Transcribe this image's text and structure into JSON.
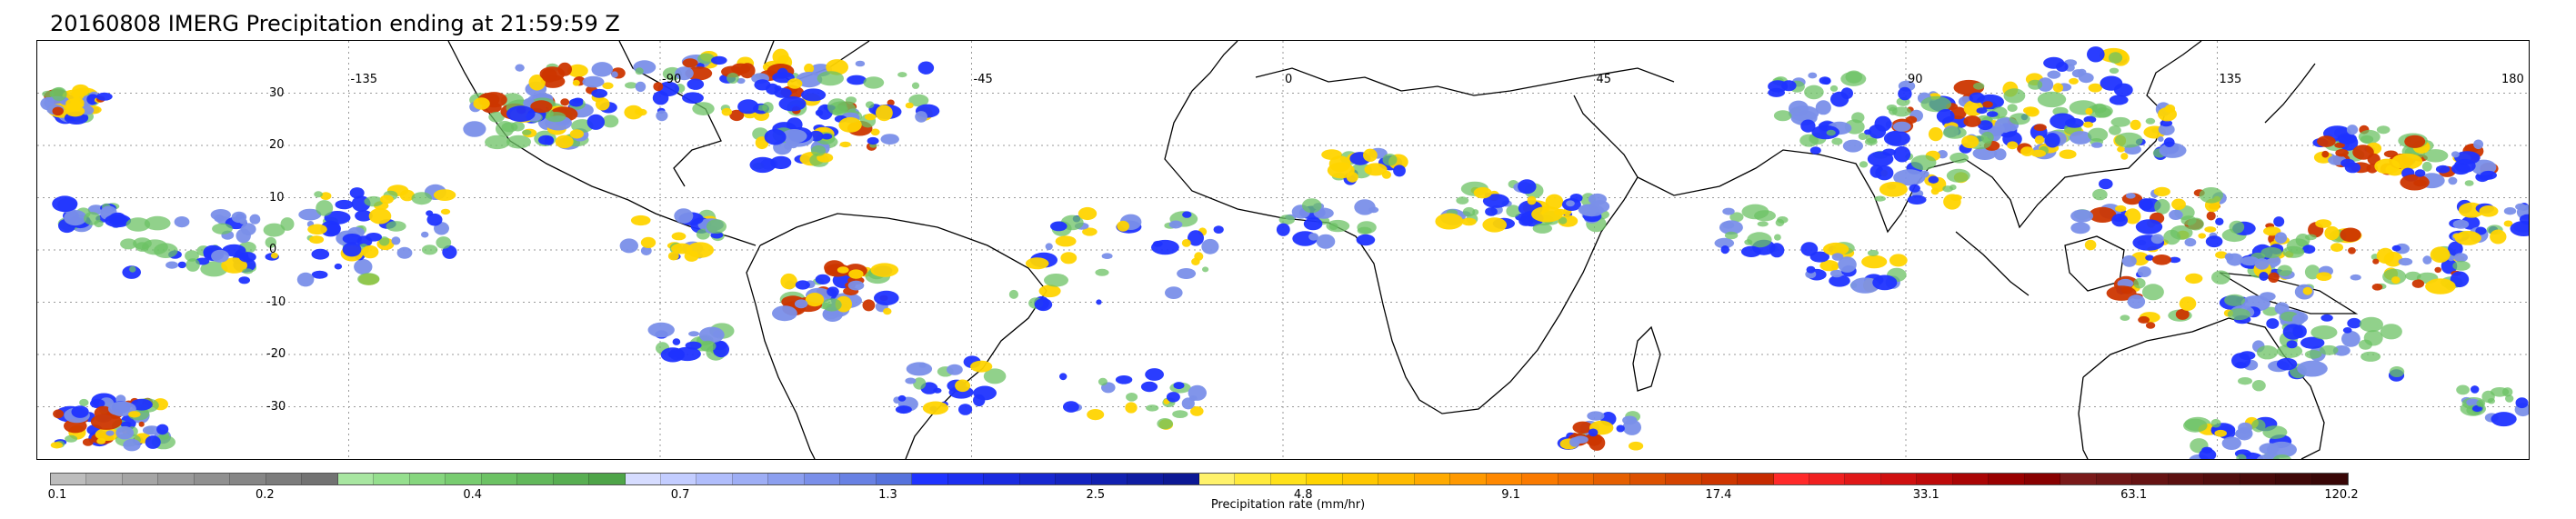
{
  "title": "20160808 IMERG Precipitation ending at 21:59:59 Z",
  "map": {
    "lon_range": [
      -180,
      180
    ],
    "lat_range": [
      -40,
      40
    ],
    "lon_labels": [
      "-135",
      "-90",
      "-45",
      "0",
      "45",
      "90",
      "135",
      "180"
    ],
    "lon_values": [
      -135,
      -90,
      -45,
      0,
      45,
      90,
      135,
      180
    ],
    "lat_labels": [
      "30",
      "20",
      "10",
      "0",
      "-10",
      "-20",
      "-30"
    ],
    "lat_values": [
      30,
      20,
      10,
      0,
      -10,
      -20,
      -30
    ],
    "gridlines": "dotted"
  },
  "colorbar": {
    "label": "Precipitation rate (mm/hr)",
    "tick_labels": [
      "0.1",
      "0.2",
      "0.4",
      "0.7",
      "1.3",
      "2.5",
      "4.8",
      "9.1",
      "17.4",
      "33.1",
      "63.1",
      "120.2"
    ],
    "segments": [
      "#bdbdbd",
      "#b0b0b0",
      "#a5a5a5",
      "#9a9a9a",
      "#909090",
      "#868686",
      "#7c7c7c",
      "#727272",
      "#a8e6a1",
      "#95df8e",
      "#86d67e",
      "#78cc70",
      "#6cc264",
      "#62b85b",
      "#58ae52",
      "#4ea448",
      "#d6dcff",
      "#c3cdff",
      "#b0bdfb",
      "#9eaef5",
      "#8c9fef",
      "#7a8fe9",
      "#6881e3",
      "#5672dc",
      "#1f33ff",
      "#1d2ff0",
      "#1a2be0",
      "#1727d0",
      "#1423c0",
      "#1120b0",
      "#0f1ca2",
      "#0c1894",
      "#fff26b",
      "#ffea3c",
      "#ffe11a",
      "#ffd400",
      "#ffc800",
      "#ffbb00",
      "#ffaa00",
      "#ff9900",
      "#ff8800",
      "#fa7a00",
      "#f06c00",
      "#e55f00",
      "#dc5000",
      "#d44300",
      "#cc3600",
      "#c62a00",
      "#ff2a2a",
      "#f02020",
      "#e01818",
      "#cf1010",
      "#bd0a0a",
      "#aa0505",
      "#990000",
      "#880000",
      "#7a1a1a",
      "#701616",
      "#661313",
      "#5c1010",
      "#520d0d",
      "#490a0a",
      "#400808",
      "#380606"
    ]
  },
  "colors": {
    "coast": "#000000",
    "grid": "#9a9a9a",
    "rain_light": "#6cc264",
    "rain_moderate": "#7a8fe9",
    "rain_heavy": "#1f33ff",
    "rain_intense": "#ffd400",
    "rain_extreme": "#cc3600"
  }
}
